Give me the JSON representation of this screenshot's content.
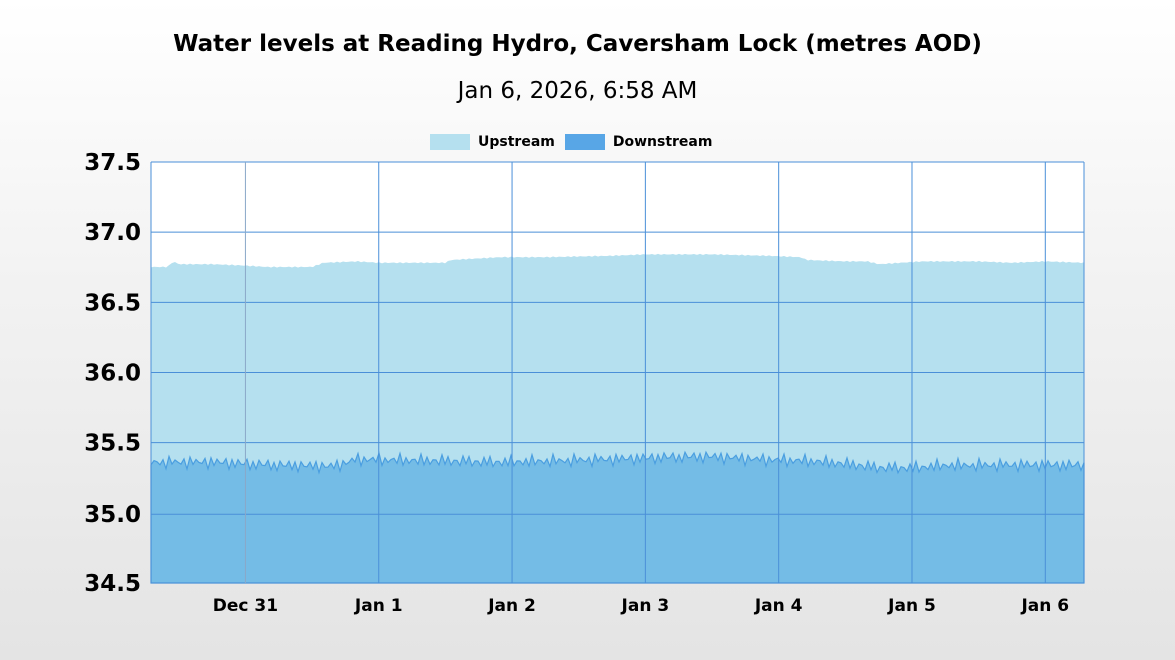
{
  "chart_data": {
    "type": "area",
    "title": "Water levels at Reading Hydro, Caversham Lock (metres AOD)",
    "subtitle": "Jan 6, 2026, 6:58 AM",
    "ylim": [
      34.5,
      37.5
    ],
    "yticks": [
      "37.5",
      "37.0",
      "36.5",
      "36.0",
      "35.5",
      "35.0",
      "34.5"
    ],
    "ytick_values": [
      37.5,
      37.0,
      36.5,
      36.0,
      35.5,
      34.99,
      34.5
    ],
    "xlim": [
      "2025-12-30T07:00",
      "2026-01-06T06:58"
    ],
    "xticks": [
      {
        "label": "Dec 31",
        "date": "2025-12-31"
      },
      {
        "label": "Jan 1",
        "date": "2026-01-01"
      },
      {
        "label": "Jan 2",
        "date": "2026-01-02"
      },
      {
        "label": "Jan 3",
        "date": "2026-01-03"
      },
      {
        "label": "Jan 4",
        "date": "2026-01-04"
      },
      {
        "label": "Jan 5",
        "date": "2026-01-05"
      },
      {
        "label": "Jan 6",
        "date": "2026-01-06"
      }
    ],
    "grid": true,
    "legend_position": "top-center",
    "series": [
      {
        "name": "Upstream",
        "color": "#b5e0ef",
        "points": [
          [
            "2025-12-30T07:00",
            36.75
          ],
          [
            "2025-12-30T10:00",
            36.75
          ],
          [
            "2025-12-30T11:00",
            36.79
          ],
          [
            "2025-12-30T12:00",
            36.77
          ],
          [
            "2025-12-30T18:00",
            36.77
          ],
          [
            "2025-12-31T00:00",
            36.76
          ],
          [
            "2025-12-31T04:00",
            36.75
          ],
          [
            "2025-12-31T12:00",
            36.75
          ],
          [
            "2025-12-31T14:00",
            36.78
          ],
          [
            "2025-12-31T20:00",
            36.79
          ],
          [
            "2026-01-01T00:00",
            36.78
          ],
          [
            "2026-01-01T12:00",
            36.78
          ],
          [
            "2026-01-01T13:00",
            36.8
          ],
          [
            "2026-01-01T22:00",
            36.82
          ],
          [
            "2026-01-02T06:00",
            36.82
          ],
          [
            "2026-01-02T18:00",
            36.83
          ],
          [
            "2026-01-03T00:00",
            36.84
          ],
          [
            "2026-01-03T12:00",
            36.84
          ],
          [
            "2026-01-03T22:00",
            36.83
          ],
          [
            "2026-01-04T04:00",
            36.82
          ],
          [
            "2026-01-04T05:00",
            36.8
          ],
          [
            "2026-01-04T12:00",
            36.79
          ],
          [
            "2026-01-04T16:00",
            36.79
          ],
          [
            "2026-01-04T18:00",
            36.77
          ],
          [
            "2026-01-04T22:00",
            36.78
          ],
          [
            "2026-01-05T02:00",
            36.79
          ],
          [
            "2026-01-05T12:00",
            36.79
          ],
          [
            "2026-01-05T18:00",
            36.78
          ],
          [
            "2026-01-06T00:00",
            36.79
          ],
          [
            "2026-01-06T06:58",
            36.78
          ]
        ]
      },
      {
        "name": "Downstream",
        "color": "#74bce6",
        "line_color": "#4a9ee0",
        "points": [
          [
            "2025-12-30T07:00",
            35.36
          ],
          [
            "2025-12-30T18:00",
            35.36
          ],
          [
            "2025-12-31T06:00",
            35.34
          ],
          [
            "2025-12-31T16:00",
            35.33
          ],
          [
            "2025-12-31T20:00",
            35.38
          ],
          [
            "2026-01-01T00:00",
            35.38
          ],
          [
            "2026-01-01T12:00",
            35.37
          ],
          [
            "2026-01-01T20:00",
            35.36
          ],
          [
            "2026-01-02T06:00",
            35.37
          ],
          [
            "2026-01-02T18:00",
            35.38
          ],
          [
            "2026-01-03T06:00",
            35.4
          ],
          [
            "2026-01-03T12:00",
            35.4
          ],
          [
            "2026-01-03T20:00",
            35.38
          ],
          [
            "2026-01-04T06:00",
            35.37
          ],
          [
            "2026-01-04T12:00",
            35.35
          ],
          [
            "2026-01-04T18:00",
            35.32
          ],
          [
            "2026-01-05T00:00",
            35.32
          ],
          [
            "2026-01-05T06:00",
            35.34
          ],
          [
            "2026-01-05T18:00",
            35.34
          ],
          [
            "2026-01-06T06:58",
            35.34
          ]
        ]
      }
    ]
  }
}
